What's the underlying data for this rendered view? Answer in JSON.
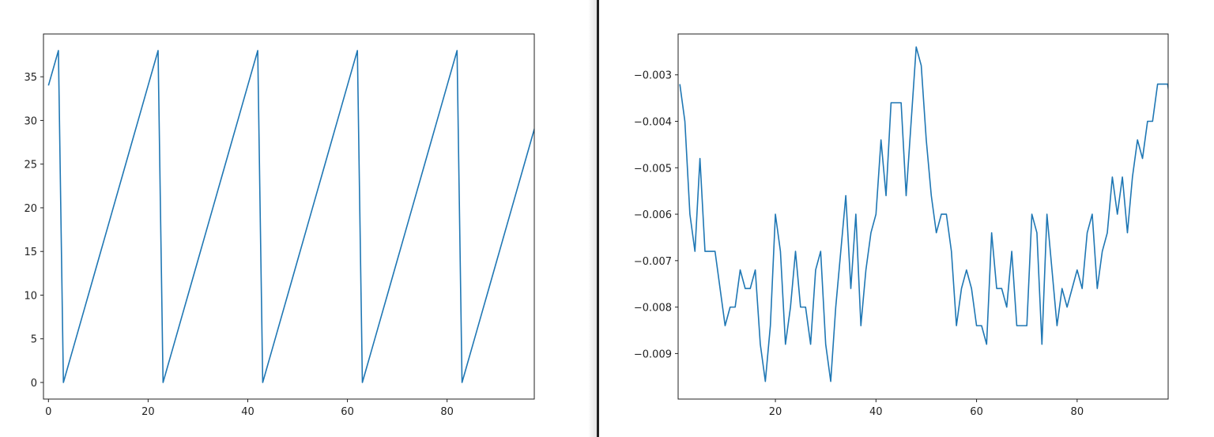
{
  "colors": {
    "line": "#1f77b4",
    "axes": "#222222",
    "divider": "#222222"
  },
  "chart_data": [
    {
      "type": "line",
      "title": "",
      "xlabel": "",
      "ylabel": "",
      "xlim": [
        -1,
        97.5
      ],
      "ylim": [
        -1.9,
        39.9
      ],
      "grid": false,
      "xticks": [
        0,
        20,
        40,
        60,
        80
      ],
      "xtick_labels": [
        "0",
        "20",
        "40",
        "60",
        "80"
      ],
      "yticks": [
        0,
        5,
        10,
        15,
        20,
        25,
        30,
        35
      ],
      "ytick_labels": [
        "0",
        "5",
        "10",
        "15",
        "20",
        "25",
        "30",
        "35"
      ],
      "x_start": 0,
      "values": [
        34,
        36,
        38,
        0,
        2,
        4,
        6,
        8,
        10,
        12,
        14,
        16,
        18,
        20,
        22,
        24,
        26,
        28,
        30,
        32,
        34,
        36,
        38,
        0,
        2,
        4,
        6,
        8,
        10,
        12,
        14,
        16,
        18,
        20,
        22,
        24,
        26,
        28,
        30,
        32,
        34,
        36,
        38,
        0,
        2,
        4,
        6,
        8,
        10,
        12,
        14,
        16,
        18,
        20,
        22,
        24,
        26,
        28,
        30,
        32,
        34,
        36,
        38,
        0,
        2,
        4,
        6,
        8,
        10,
        12,
        14,
        16,
        18,
        20,
        22,
        24,
        26,
        28,
        30,
        32,
        34,
        36,
        38,
        0,
        2,
        4,
        6,
        8,
        10,
        12,
        14,
        16,
        18,
        20,
        22,
        24,
        26,
        28,
        30,
        32
      ]
    },
    {
      "type": "line",
      "title": "",
      "xlabel": "",
      "ylabel": "",
      "xlim": [
        0.66,
        98.1
      ],
      "ylim": [
        -0.00998,
        -0.00212
      ],
      "grid": false,
      "xticks": [
        20,
        40,
        60,
        80
      ],
      "xtick_labels": [
        "20",
        "40",
        "60",
        "80"
      ],
      "yticks": [
        -0.003,
        -0.004,
        -0.005,
        -0.006,
        -0.007,
        -0.008,
        -0.009
      ],
      "ytick_labels": [
        "−0.003",
        "−0.004",
        "−0.005",
        "−0.006",
        "−0.007",
        "−0.008",
        "−0.009"
      ],
      "x_start": 1,
      "values": [
        -0.0032,
        -0.004,
        -0.006,
        -0.0068,
        -0.0048,
        -0.0068,
        -0.0068,
        -0.0068,
        -0.0076,
        -0.0084,
        -0.008,
        -0.008,
        -0.0072,
        -0.0076,
        -0.0076,
        -0.0072,
        -0.0088,
        -0.0096,
        -0.0084,
        -0.006,
        -0.0068,
        -0.0088,
        -0.008,
        -0.0068,
        -0.008,
        -0.008,
        -0.0088,
        -0.0072,
        -0.0068,
        -0.0088,
        -0.0096,
        -0.008,
        -0.0068,
        -0.0056,
        -0.0076,
        -0.006,
        -0.0084,
        -0.0072,
        -0.0064,
        -0.006,
        -0.0044,
        -0.0056,
        -0.0036,
        -0.0036,
        -0.0036,
        -0.0056,
        -0.004,
        -0.0024,
        -0.0028,
        -0.0044,
        -0.0056,
        -0.0064,
        -0.006,
        -0.006,
        -0.0068,
        -0.0084,
        -0.0076,
        -0.0072,
        -0.0076,
        -0.0084,
        -0.0084,
        -0.0088,
        -0.0064,
        -0.0076,
        -0.0076,
        -0.008,
        -0.0068,
        -0.0084,
        -0.0084,
        -0.0084,
        -0.006,
        -0.0064,
        -0.0088,
        -0.006,
        -0.0072,
        -0.0084,
        -0.0076,
        -0.008,
        -0.0076,
        -0.0072,
        -0.0076,
        -0.0064,
        -0.006,
        -0.0076,
        -0.0068,
        -0.0064,
        -0.0052,
        -0.006,
        -0.0052,
        -0.0064,
        -0.0052,
        -0.0044,
        -0.0048,
        -0.004,
        -0.004,
        -0.0032,
        -0.0032,
        -0.0032,
        -0.004
      ]
    }
  ]
}
